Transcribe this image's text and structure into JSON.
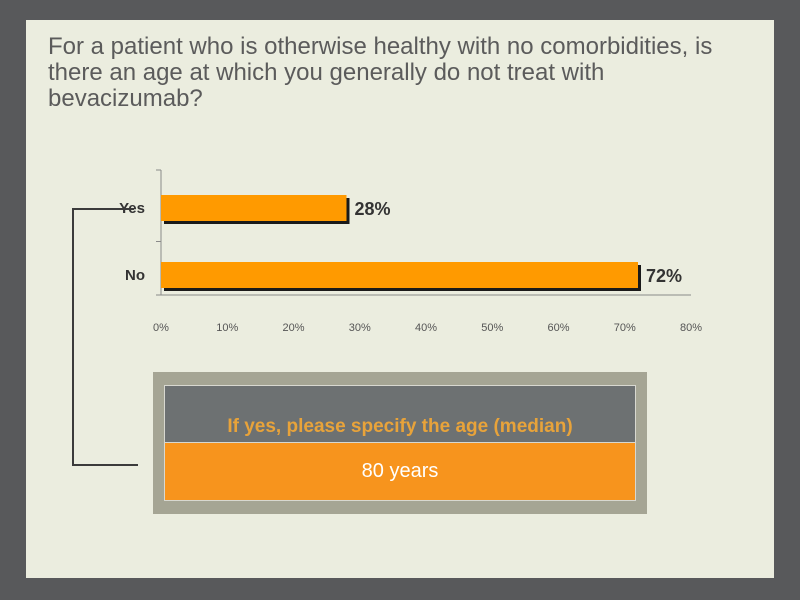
{
  "slide": {
    "title": "For a patient who is otherwise healthy with no comorbidities, is there an age at which you generally do not treat with bevacizumab?"
  },
  "chart_data": {
    "type": "bar",
    "orientation": "horizontal",
    "categories": [
      "Yes",
      "No"
    ],
    "values": [
      28,
      72
    ],
    "value_labels": [
      "28%",
      "72%"
    ],
    "xlim": [
      0,
      80
    ],
    "xticks": [
      "0%",
      "10%",
      "20%",
      "30%",
      "40%",
      "50%",
      "60%",
      "70%",
      "80%"
    ],
    "bar_color": "#ff9a00",
    "grid": false
  },
  "followup": {
    "heading": "If yes, please specify the age (median)",
    "value": "80 years"
  },
  "colors": {
    "frame": "#58595b",
    "background": "#ebeddf",
    "accent_orange": "#f7941d",
    "heading_gold": "#e8a33a"
  }
}
